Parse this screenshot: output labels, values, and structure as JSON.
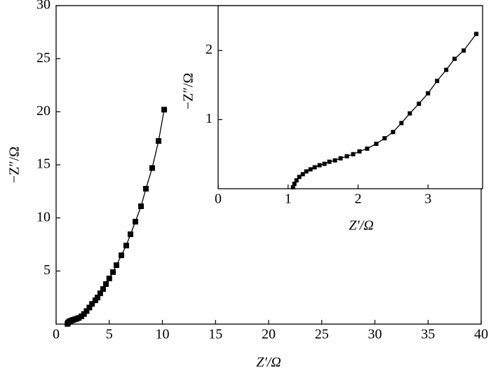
{
  "chart_data": [
    {
      "type": "line",
      "xlabel": "Z′/Ω",
      "ylabel": "−Z″/Ω",
      "color": "#000000",
      "xlim": [
        0,
        40
      ],
      "xticks": [
        0,
        5,
        10,
        15,
        20,
        25,
        30,
        35,
        40
      ],
      "ylim": [
        0,
        30
      ],
      "yticks": [
        5,
        10,
        15,
        20,
        25,
        30
      ],
      "x": [
        1.07,
        1.12,
        1.21,
        1.32,
        1.45,
        1.59,
        1.75,
        1.93,
        2.13,
        2.38,
        2.62,
        2.87,
        3.13,
        3.38,
        3.69,
        3.9,
        4.15,
        4.42,
        4.69,
        5.0,
        5.35,
        5.68,
        6.14,
        6.6,
        7.0,
        7.46,
        7.99,
        8.45,
        9.04,
        9.64,
        10.17
      ],
      "y": [
        0.02,
        0.12,
        0.21,
        0.28,
        0.34,
        0.39,
        0.44,
        0.5,
        0.58,
        0.73,
        0.95,
        1.23,
        1.56,
        1.9,
        2.24,
        2.5,
        2.9,
        3.3,
        3.77,
        4.3,
        4.9,
        5.55,
        6.48,
        7.4,
        8.46,
        9.65,
        11.1,
        12.75,
        14.7,
        17.25,
        20.2
      ]
    },
    {
      "type": "line",
      "xlabel": "Z′/Ω",
      "ylabel": "−Z″/Ω",
      "color": "#000000",
      "xlim": [
        0,
        3.78
      ],
      "xticks": [
        0,
        1,
        2,
        3
      ],
      "ylim": [
        0,
        2.65
      ],
      "yticks": [
        1,
        2
      ],
      "x": [
        1.07,
        1.09,
        1.12,
        1.16,
        1.21,
        1.26,
        1.32,
        1.38,
        1.45,
        1.52,
        1.59,
        1.67,
        1.75,
        1.84,
        1.93,
        2.02,
        2.13,
        2.26,
        2.38,
        2.5,
        2.62,
        2.74,
        2.87,
        3.0,
        3.13,
        3.26,
        3.38,
        3.51,
        3.69
      ],
      "y": [
        0.02,
        0.07,
        0.12,
        0.17,
        0.21,
        0.25,
        0.28,
        0.31,
        0.34,
        0.36,
        0.39,
        0.41,
        0.44,
        0.47,
        0.5,
        0.54,
        0.58,
        0.65,
        0.73,
        0.82,
        0.95,
        1.09,
        1.23,
        1.38,
        1.56,
        1.72,
        1.88,
        2.0,
        2.24
      ]
    }
  ]
}
